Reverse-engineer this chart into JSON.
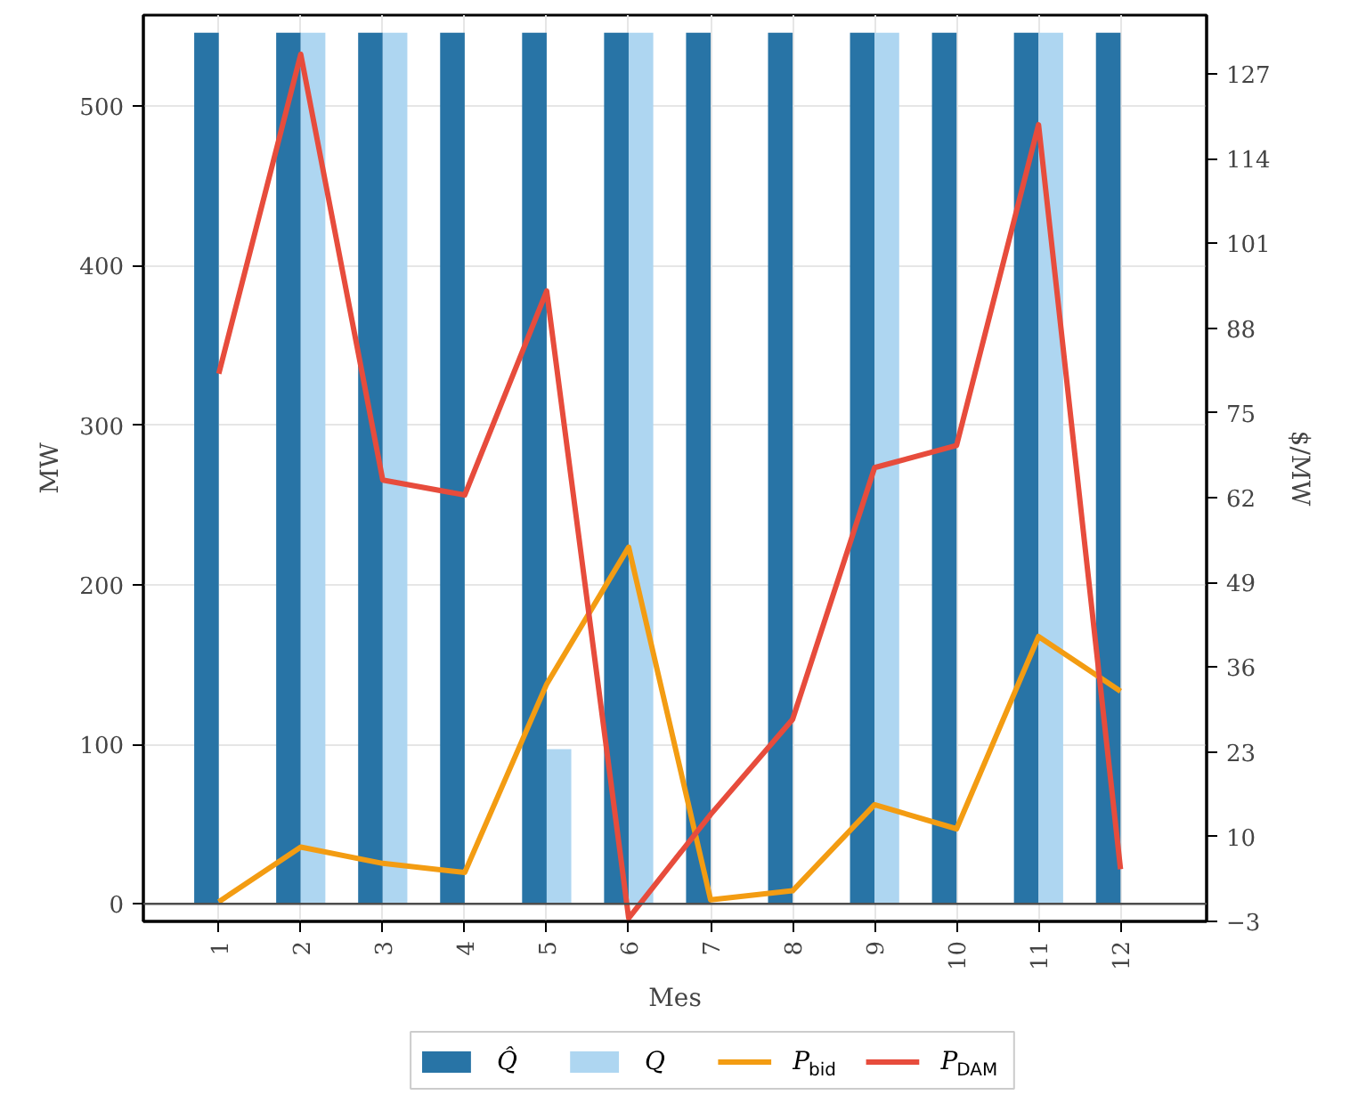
{
  "chart_data": {
    "type": "bar",
    "xlabel": "Mes",
    "ylabel": "MW",
    "y2label": "$/MW",
    "categories": [
      "1",
      "2",
      "3",
      "4",
      "5",
      "6",
      "7",
      "8",
      "9",
      "10",
      "11",
      "12"
    ],
    "series": [
      {
        "name": "Q̂",
        "color": "#2874a6",
        "values": [
          546,
          546,
          546,
          546,
          546,
          546,
          546,
          546,
          546,
          546,
          546,
          546
        ]
      },
      {
        "name": "Q",
        "color": "#aed6f1",
        "values": [
          0,
          546,
          546,
          0,
          97,
          546,
          0,
          0,
          546,
          0,
          546,
          0
        ]
      },
      {
        "name": "P$_{bid}$",
        "type": "line",
        "axis": "y2",
        "color": "#f39c12",
        "values": [
          0,
          8.4,
          5.9,
          4.5,
          33.4,
          54.4,
          0.3,
          1.7,
          14.9,
          11.2,
          40.7,
          32.3
        ]
      },
      {
        "name": "P$_{DAM}$",
        "type": "line",
        "axis": "y2",
        "color": "#e74c3c",
        "values": [
          81,
          130,
          64.7,
          62.4,
          93.7,
          -2.5,
          13.4,
          28,
          66.6,
          70,
          119.2,
          5
        ]
      }
    ],
    "ylim": [
      -11,
      557
    ],
    "yticks": [
      0,
      100,
      200,
      300,
      400,
      500
    ],
    "y2lim": [
      -3,
      136
    ],
    "y2ticks": [
      -3,
      10,
      23,
      36,
      49,
      62,
      75,
      88,
      101,
      114,
      127
    ],
    "ref_lines": [
      {
        "axis": "y",
        "value": 0,
        "color": "#4d4d4d"
      }
    ],
    "grid": true,
    "legend": "bottom",
    "marker": "none",
    "line_style": "solid"
  }
}
